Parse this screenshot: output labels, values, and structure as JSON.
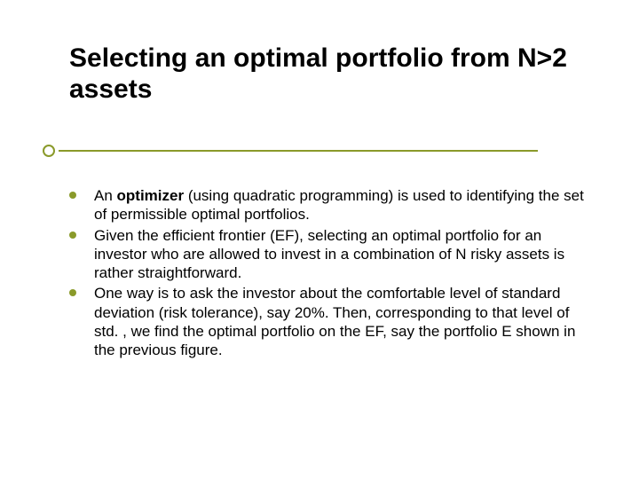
{
  "colors": {
    "accent": "#8a9a2a",
    "text": "#000000",
    "background": "#ffffff"
  },
  "title": "Selecting an optimal portfolio from N>2 assets",
  "bullets": [
    {
      "prefix": "An ",
      "bold": "optimizer",
      "rest": " (using quadratic programming) is used to identifying the set of permissible optimal portfolios."
    },
    {
      "prefix": "",
      "bold": "",
      "rest": "Given the efficient frontier (EF), selecting an optimal portfolio for an investor who are allowed to invest in a combination of  N risky assets is rather straightforward."
    },
    {
      "prefix": "",
      "bold": "",
      "rest": "One way is to ask the investor about the comfortable level of standard deviation (risk tolerance), say 20%.  Then, corresponding to that level of std. , we find the optimal portfolio on the EF, say the portfolio E shown in the previous figure."
    }
  ]
}
